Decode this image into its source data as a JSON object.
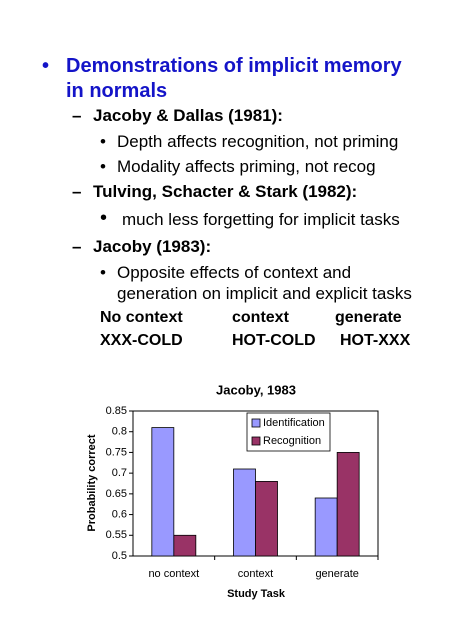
{
  "slide": {
    "heading": {
      "marker": "•",
      "lines": [
        "Demonstrations of implicit memory",
        "in normals"
      ]
    },
    "items": [
      {
        "marker": "–",
        "text": "Jacoby & Dallas (1981):"
      },
      {
        "marker": "•",
        "text": "Depth affects recognition, not priming"
      },
      {
        "marker": "•",
        "text": "Modality affects priming, not recog"
      },
      {
        "marker": "–",
        "text": "Tulving, Schacter & Stark (1982):"
      },
      {
        "marker": "•",
        "text": "much less forgetting for implicit tasks"
      },
      {
        "marker": "–",
        "text": "Jacoby (1983):"
      },
      {
        "marker": "•",
        "text": "Opposite effects of context and"
      },
      {
        "marker": "",
        "text": "generation on implicit and explicit tasks"
      }
    ],
    "table": {
      "rows": [
        [
          "No context",
          "context",
          "generate"
        ],
        [
          "XXX-COLD",
          "HOT-COLD",
          "HOT-XXX"
        ]
      ]
    }
  },
  "chart_data": {
    "type": "bar",
    "title": "Jacoby, 1983",
    "x_label": "Study Task",
    "y_label": "Probability correct",
    "categories": [
      "no context",
      "context",
      "generate"
    ],
    "series": [
      {
        "name": "Identification",
        "color": "#9999ff",
        "values": [
          0.81,
          0.71,
          0.64
        ]
      },
      {
        "name": "Recognition",
        "color": "#993366",
        "values": [
          0.55,
          0.68,
          0.75
        ]
      }
    ],
    "ylim": [
      0.5,
      0.85
    ],
    "yticks": [
      0.5,
      0.55,
      0.6,
      0.65,
      0.7,
      0.75,
      0.8,
      0.85
    ],
    "legend": "upper right"
  }
}
